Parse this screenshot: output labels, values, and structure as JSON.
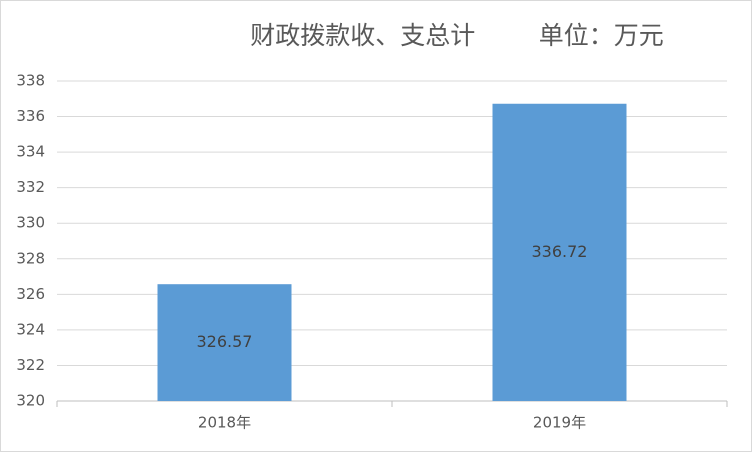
{
  "chart_data": {
    "type": "bar",
    "title": "财政拨款收、支总计        单位：万元",
    "categories": [
      "2018年",
      "2019年"
    ],
    "values": [
      326.57,
      336.72
    ],
    "value_labels": [
      "326.57",
      "336.72"
    ],
    "color": "#5b9bd5",
    "ylim": [
      320,
      338
    ],
    "yticks": [
      320,
      322,
      324,
      326,
      328,
      330,
      332,
      334,
      336,
      338
    ],
    "grid": true
  }
}
